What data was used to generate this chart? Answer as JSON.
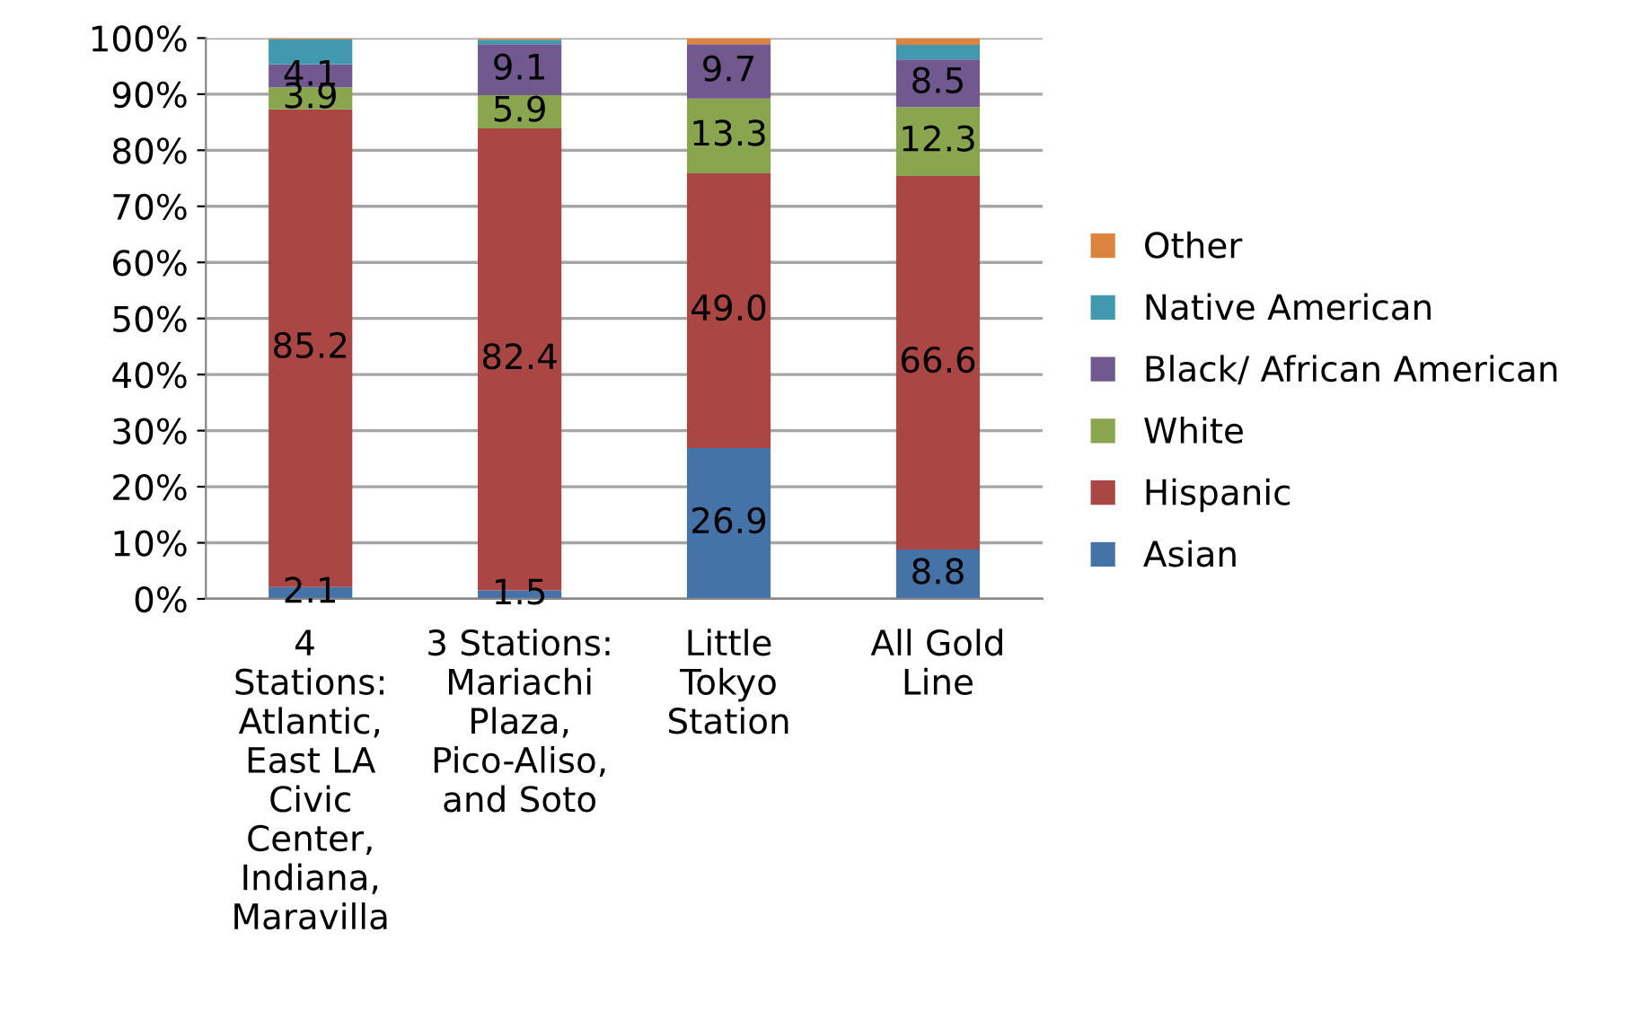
{
  "chart_data": {
    "type": "bar",
    "stacked": true,
    "categories": [
      "4  Stations: Atlantic, East LA Civic Center, Indiana, Maravilla",
      "3 Stations: Mariachi Plaza, Pico-Aliso, and Soto",
      "Little Tokyo Station",
      "All Gold Line"
    ],
    "series": [
      {
        "name": "Asian",
        "color": "#4572a7",
        "values": [
          2.1,
          1.5,
          26.9,
          8.8
        ],
        "value_labels": [
          "2.1",
          "1.5",
          "26.9",
          "8.8"
        ]
      },
      {
        "name": "Hispanic",
        "color": "#aa4643",
        "values": [
          85.2,
          82.4,
          49.0,
          66.6
        ],
        "value_labels": [
          "85.2",
          "82.4",
          "49.0",
          "66.6"
        ]
      },
      {
        "name": "White",
        "color": "#89a54e",
        "values": [
          3.9,
          5.9,
          13.3,
          12.3
        ],
        "value_labels": [
          "3.9",
          "5.9",
          "13.3",
          "12.3"
        ]
      },
      {
        "name": "Black/ African American",
        "color": "#71588f",
        "values": [
          4.1,
          9.1,
          9.7,
          8.5
        ],
        "value_labels": [
          "4.1",
          "9.1",
          "9.7",
          "8.5"
        ]
      },
      {
        "name": "Native American",
        "color": "#4198af",
        "values": [
          4.5,
          0.8,
          0.0,
          2.6
        ]
      },
      {
        "name": "Other",
        "color": "#db843d",
        "values": [
          0.2,
          0.3,
          1.1,
          1.2
        ]
      }
    ],
    "ylim": [
      0,
      100
    ],
    "yticks": [
      {
        "value": 0,
        "label": "0%"
      },
      {
        "value": 10,
        "label": "10%"
      },
      {
        "value": 20,
        "label": "20%"
      },
      {
        "value": 30,
        "label": "30%"
      },
      {
        "value": 40,
        "label": "40%"
      },
      {
        "value": 50,
        "label": "50%"
      },
      {
        "value": 60,
        "label": "60%"
      },
      {
        "value": 70,
        "label": "70%"
      },
      {
        "value": 80,
        "label": "80%"
      },
      {
        "value": 90,
        "label": "90%"
      },
      {
        "value": 100,
        "label": "100%"
      }
    ],
    "grid": "y",
    "legend": "right"
  }
}
